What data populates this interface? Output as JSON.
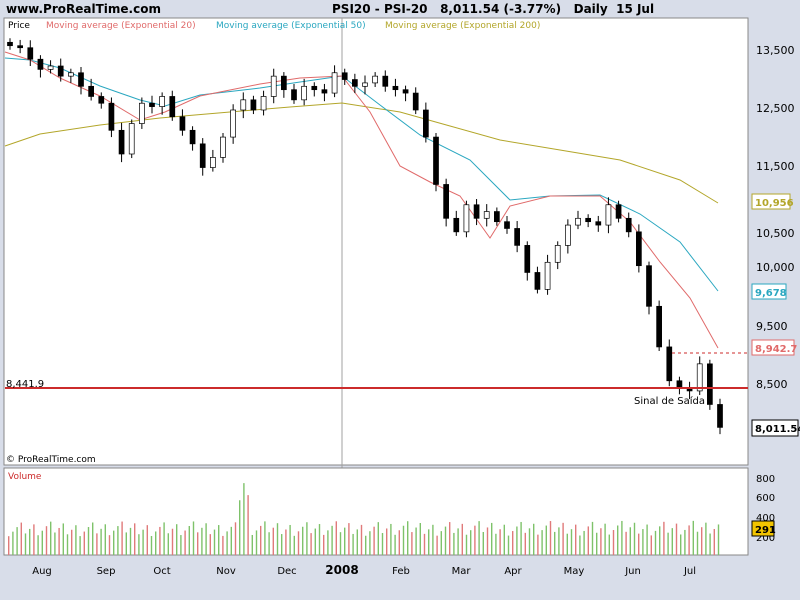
{
  "header": {
    "site": "www.ProRealTime.com",
    "symbol": "PSI20 - PSI-20",
    "last": "8,011.54",
    "change": "(-3.77%)",
    "period": "Daily",
    "date": "15 Jul"
  },
  "colors": {
    "background": "#d8dde9",
    "panel": "#ffffff",
    "up": "#ffffff",
    "down": "#000000",
    "ema20": "#e06a6a",
    "ema50": "#2aa7c0",
    "ema200": "#b3a62a",
    "support": "#cc2b2b",
    "vol_up": "#7ec26a",
    "vol_down": "#e07a7a"
  },
  "chart_data": [
    {
      "type": "candlestick",
      "title": "Price",
      "legend": [
        "Moving average (Exponential 20)",
        "Moving average (Exponential 50)",
        "Moving average (Exponential 200)"
      ],
      "x": [
        "Aug",
        "Sep",
        "Oct",
        "Nov",
        "Dec",
        "2008",
        "Feb",
        "Mar",
        "Apr",
        "May",
        "Jun",
        "Jul"
      ],
      "y_ticks": [
        "13,500",
        "12,500",
        "11,500",
        "10,500",
        "10,000",
        "9,500",
        "8,500"
      ],
      "ylim": [
        7500,
        14000
      ],
      "closes": [
        13650,
        13620,
        13450,
        13300,
        13350,
        13200,
        13250,
        13050,
        12900,
        12800,
        12400,
        12050,
        12500,
        12800,
        12750,
        12900,
        12600,
        12400,
        12200,
        11850,
        12000,
        12300,
        12700,
        12850,
        12700,
        12900,
        13200,
        13000,
        12850,
        13050,
        13000,
        12950,
        13250,
        13150,
        13050,
        13100,
        13200,
        13050,
        13000,
        12950,
        12700,
        12300,
        11600,
        11100,
        10900,
        11300,
        11100,
        11200,
        11050,
        10950,
        10700,
        10300,
        10050,
        10450,
        10700,
        11000,
        11100,
        11050,
        11000,
        11300,
        11100,
        10900,
        10400,
        9800,
        9200,
        8700,
        8600,
        8550,
        8950,
        8350,
        8011.54
      ],
      "ema_20_end": "8,942.7",
      "ema_50_end": "9,678",
      "ema_200_end": "10,956",
      "last_price": "8,011.54",
      "support_level": "8,441.9",
      "annotation": "Sinal de Saída",
      "source": "© ProRealTime.com"
    },
    {
      "type": "bar",
      "title": "Volume",
      "y_ticks": [
        "800",
        "600",
        "400",
        "200"
      ],
      "ylim": [
        0,
        900
      ],
      "last_value": "291"
    }
  ]
}
